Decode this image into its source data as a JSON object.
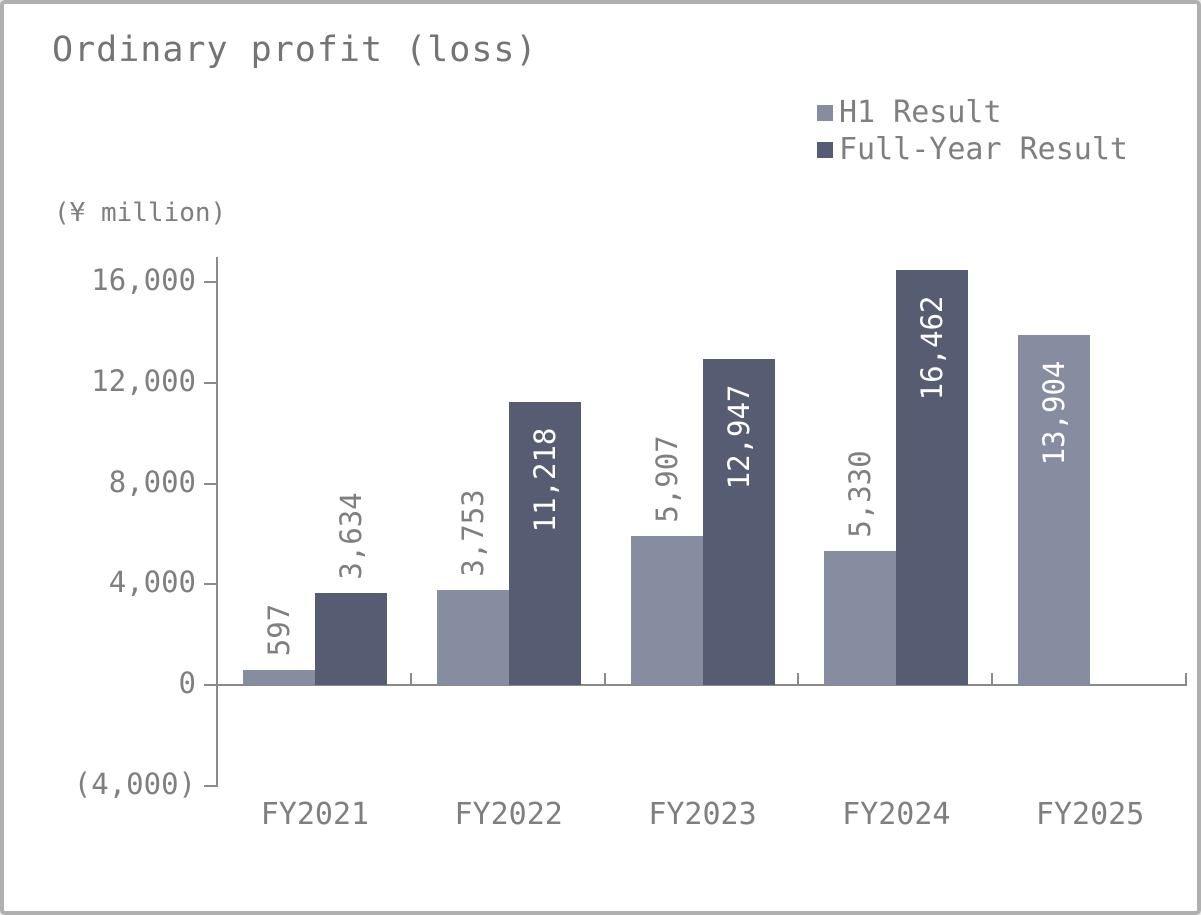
{
  "chart_data": {
    "type": "bar",
    "title": "Ordinary profit (loss)",
    "unit_label": "(¥ million)",
    "categories": [
      "FY2021",
      "FY2022",
      "FY2023",
      "FY2024",
      "FY2025"
    ],
    "series": [
      {
        "name": "H1 Result",
        "color": "#878DA1",
        "values": [
          597,
          3753,
          5907,
          5330,
          13904
        ],
        "labels": [
          "597",
          "3,753",
          "5,907",
          "5,330",
          "13,904"
        ],
        "label_placement": [
          "outside",
          "outside",
          "outside",
          "outside",
          "inside"
        ]
      },
      {
        "name": "Full-Year Result",
        "color": "#565C72",
        "values": [
          3634,
          11218,
          12947,
          16462,
          null
        ],
        "labels": [
          "3,634",
          "11,218",
          "12,947",
          "16,462",
          ""
        ],
        "label_placement": [
          "outside",
          "inside",
          "inside",
          "inside",
          null
        ]
      }
    ],
    "y_axis": {
      "ticks": [
        16000,
        12000,
        8000,
        4000,
        0,
        -4000
      ],
      "tick_labels": [
        "16,000",
        "12,000",
        "8,000",
        "4,000",
        "0",
        "(4,000)"
      ],
      "min": -4000,
      "max": 17000
    },
    "legend_position": "top-right",
    "grid": false,
    "colors": {
      "axis": "#8a8a8a",
      "label_outside": "#7f7f7f",
      "label_inside": "#ffffff",
      "text": "#7f7f7f",
      "frame_border": "#b0b0b0"
    }
  }
}
